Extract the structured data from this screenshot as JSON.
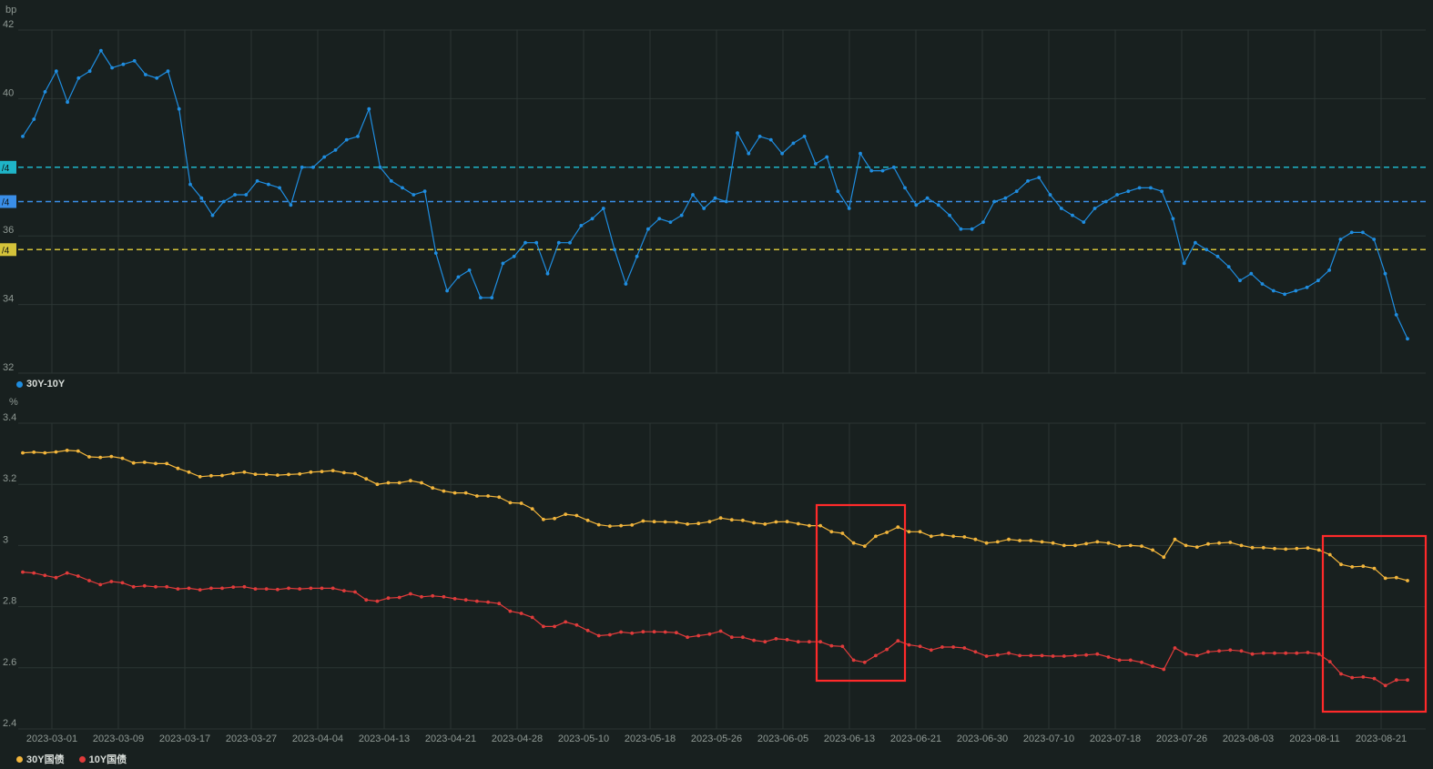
{
  "colors": {
    "background": "#18201f",
    "grid": "#2b3533",
    "axis_text": "#8f9994",
    "spread": "#1f8de0",
    "y30": "#f2b53c",
    "y10": "#e03b3b",
    "highlight_box": "#ff2a2a",
    "q3_line": "#1fb5c8",
    "q2_line": "#3a8ee8",
    "q1_line": "#d4c23a"
  },
  "chart_data": [
    {
      "type": "line",
      "unit_label": "bp",
      "ylim": [
        32,
        42
      ],
      "yticks": [
        32,
        34,
        36,
        40,
        42
      ],
      "grid": true,
      "legend_position": "bottom-left",
      "series": [
        {
          "name": "30Y-10Y",
          "values": [
            38.9,
            39.4,
            40.2,
            40.8,
            39.9,
            40.6,
            40.8,
            41.4,
            40.9,
            41.0,
            41.1,
            40.7,
            40.6,
            40.8,
            39.7,
            37.5,
            37.1,
            36.6,
            37.0,
            37.2,
            37.2,
            37.6,
            37.5,
            37.4,
            36.9,
            38.0,
            38.0,
            38.3,
            38.5,
            38.8,
            38.9,
            39.7,
            38.0,
            37.6,
            37.4,
            37.2,
            37.3,
            35.5,
            34.4,
            34.8,
            35.0,
            34.2,
            34.2,
            35.2,
            35.4,
            35.8,
            35.8,
            34.9,
            35.8,
            35.8,
            36.3,
            36.5,
            36.8,
            35.6,
            34.6,
            35.4,
            36.2,
            36.5,
            36.4,
            36.6,
            37.2,
            36.8,
            37.1,
            37.0,
            39.0,
            38.4,
            38.9,
            38.8,
            38.4,
            38.7,
            38.9,
            38.1,
            38.3,
            37.3,
            36.8,
            38.4,
            37.9,
            37.9,
            38.0,
            37.4,
            36.9,
            37.1,
            36.9,
            36.6,
            36.2,
            36.2,
            36.4,
            37.0,
            37.1,
            37.3,
            37.6,
            37.7,
            37.2,
            36.8,
            36.6,
            36.4,
            36.8,
            37.0,
            37.2,
            37.3,
            37.4,
            37.4,
            37.3,
            36.5,
            35.2,
            35.8,
            35.6,
            35.4,
            35.1,
            34.7,
            34.9,
            34.6,
            34.4,
            34.3,
            34.4,
            34.5,
            34.7,
            35.0,
            35.9,
            36.1,
            36.1,
            35.9,
            34.9,
            33.7,
            33.0
          ]
        }
      ],
      "reference_lines": [
        {
          "label": "/4",
          "value": 38.0,
          "color_key": "q3_line"
        },
        {
          "label": "/4",
          "value": 37.0,
          "color_key": "q2_line"
        },
        {
          "label": "/4",
          "value": 35.6,
          "color_key": "q1_line"
        }
      ]
    },
    {
      "type": "line",
      "unit_label": "%",
      "ylim": [
        2.4,
        3.4
      ],
      "yticks": [
        2.4,
        2.6,
        2.8,
        3,
        3.2,
        3.4
      ],
      "grid": true,
      "legend_position": "bottom-left",
      "x_tick_labels": [
        "2023-03-01",
        "2023-03-09",
        "2023-03-17",
        "2023-03-27",
        "2023-04-04",
        "2023-04-13",
        "2023-04-21",
        "2023-04-28",
        "2023-05-10",
        "2023-05-18",
        "2023-05-26",
        "2023-06-05",
        "2023-06-13",
        "2023-06-21",
        "2023-06-30",
        "2023-07-10",
        "2023-07-18",
        "2023-07-26",
        "2023-08-03",
        "2023-08-11",
        "2023-08-21"
      ],
      "series": [
        {
          "name": "30Y国债",
          "values": [
            3.303,
            3.305,
            3.303,
            3.306,
            3.311,
            3.309,
            3.29,
            3.288,
            3.291,
            3.285,
            3.27,
            3.272,
            3.268,
            3.268,
            3.252,
            3.24,
            3.225,
            3.228,
            3.229,
            3.236,
            3.24,
            3.233,
            3.232,
            3.23,
            3.232,
            3.234,
            3.24,
            3.242,
            3.245,
            3.238,
            3.235,
            3.218,
            3.2,
            3.205,
            3.205,
            3.212,
            3.205,
            3.188,
            3.178,
            3.172,
            3.172,
            3.162,
            3.162,
            3.158,
            3.14,
            3.138,
            3.12,
            3.085,
            3.088,
            3.102,
            3.098,
            3.082,
            3.068,
            3.063,
            3.065,
            3.067,
            3.08,
            3.078,
            3.077,
            3.076,
            3.07,
            3.072,
            3.078,
            3.09,
            3.084,
            3.082,
            3.074,
            3.07,
            3.077,
            3.078,
            3.071,
            3.065,
            3.065,
            3.045,
            3.04,
            3.008,
            2.998,
            3.03,
            3.043,
            3.06,
            3.045,
            3.045,
            3.03,
            3.035,
            3.03,
            3.028,
            3.02,
            3.008,
            3.012,
            3.02,
            3.016,
            3.016,
            3.012,
            3.008,
            3.0,
            3.0,
            3.006,
            3.012,
            3.008,
            2.998,
            3.0,
            2.998,
            2.985,
            2.962,
            3.02,
            3.0,
            2.995,
            3.005,
            3.008,
            3.01,
            3.0,
            2.993,
            2.993,
            2.99,
            2.988,
            2.99,
            2.992,
            2.985,
            2.97,
            2.938,
            2.93,
            2.932,
            2.925,
            2.893,
            2.895,
            2.885
          ]
        },
        {
          "name": "10Y国债",
          "values": [
            2.913,
            2.91,
            2.902,
            2.895,
            2.91,
            2.9,
            2.885,
            2.872,
            2.882,
            2.878,
            2.865,
            2.868,
            2.865,
            2.865,
            2.858,
            2.86,
            2.855,
            2.86,
            2.86,
            2.864,
            2.865,
            2.858,
            2.858,
            2.856,
            2.86,
            2.858,
            2.86,
            2.86,
            2.86,
            2.852,
            2.848,
            2.822,
            2.818,
            2.828,
            2.83,
            2.842,
            2.832,
            2.835,
            2.832,
            2.826,
            2.822,
            2.818,
            2.815,
            2.81,
            2.785,
            2.778,
            2.765,
            2.735,
            2.735,
            2.75,
            2.74,
            2.722,
            2.705,
            2.708,
            2.717,
            2.713,
            2.718,
            2.718,
            2.717,
            2.715,
            2.7,
            2.705,
            2.71,
            2.72,
            2.7,
            2.7,
            2.69,
            2.685,
            2.695,
            2.692,
            2.685,
            2.685,
            2.685,
            2.672,
            2.67,
            2.625,
            2.618,
            2.64,
            2.66,
            2.688,
            2.675,
            2.67,
            2.658,
            2.668,
            2.668,
            2.665,
            2.652,
            2.638,
            2.642,
            2.648,
            2.64,
            2.64,
            2.64,
            2.638,
            2.638,
            2.64,
            2.642,
            2.645,
            2.635,
            2.625,
            2.625,
            2.618,
            2.605,
            2.595,
            2.665,
            2.645,
            2.64,
            2.652,
            2.655,
            2.658,
            2.655,
            2.645,
            2.648,
            2.648,
            2.648,
            2.648,
            2.65,
            2.645,
            2.62,
            2.58,
            2.568,
            2.57,
            2.565,
            2.542,
            2.56,
            2.56
          ]
        }
      ],
      "highlight_ranges": [
        {
          "from_label": "2023-06-08",
          "to_label": "2023-06-20"
        },
        {
          "from_label": "2023-08-11",
          "to_label": "2023-08-24"
        }
      ]
    }
  ]
}
